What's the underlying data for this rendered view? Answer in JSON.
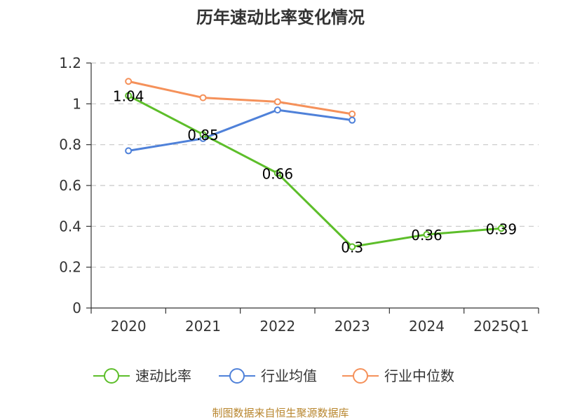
{
  "chart_data": {
    "type": "line",
    "title": "历年速动比率变化情况",
    "categories": [
      "2020",
      "2021",
      "2022",
      "2023",
      "2024",
      "2025Q1"
    ],
    "yticks": [
      "0",
      "0.2",
      "0.4",
      "0.6",
      "0.8",
      "1",
      "1.2"
    ],
    "ylim": [
      0,
      1.2
    ],
    "grid": true,
    "legend_position": "bottom",
    "series": [
      {
        "name": "速动比率",
        "color": "#5dbe2a",
        "values": [
          1.04,
          0.85,
          0.66,
          0.3,
          0.36,
          0.39
        ],
        "labels": [
          "1.04",
          "0.85",
          "0.66",
          "0.3",
          "0.36",
          "0.39"
        ]
      },
      {
        "name": "行业均值",
        "color": "#4f81d9",
        "values": [
          0.77,
          0.83,
          0.97,
          0.92,
          null,
          null
        ]
      },
      {
        "name": "行业中位数",
        "color": "#f5915a",
        "values": [
          1.11,
          1.03,
          1.01,
          0.95,
          null,
          null
        ]
      }
    ],
    "source": "制图数据来自恒生聚源数据库"
  }
}
